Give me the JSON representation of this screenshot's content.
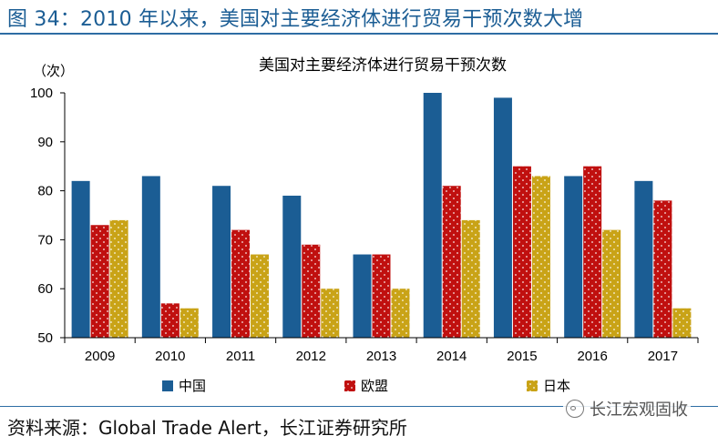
{
  "figure_title": "图 34：2010 年以来，美国对主要经济体进行贸易干预次数大增",
  "source": "资料来源：Global Trade Alert，长江证券研究所",
  "watermark": "长江宏观固收",
  "watermark_icon": "wechat-icon",
  "colors": {
    "china": "#1b5d94",
    "eu": "#c0100f",
    "japan": "#c9a317",
    "axis": "#000000",
    "brand": "#1b5d94"
  },
  "chart_data": {
    "type": "bar",
    "title": "美国对主要经济体进行贸易干预次数",
    "ylabel": "（次）",
    "xlabel": "",
    "ylim": [
      50,
      100
    ],
    "yticks": [
      50,
      60,
      70,
      80,
      90,
      100
    ],
    "grid": false,
    "legend_position": "bottom",
    "categories": [
      "2009",
      "2010",
      "2011",
      "2012",
      "2013",
      "2014",
      "2015",
      "2016",
      "2017"
    ],
    "series": [
      {
        "name": "中国",
        "color": "#1b5d94",
        "values": [
          82,
          83,
          81,
          79,
          67,
          100,
          99,
          83,
          82
        ]
      },
      {
        "name": "欧盟",
        "color": "#c0100f",
        "values": [
          73,
          57,
          72,
          69,
          67,
          81,
          85,
          85,
          78
        ]
      },
      {
        "name": "日本",
        "color": "#c9a317",
        "values": [
          74,
          56,
          67,
          60,
          60,
          74,
          83,
          72,
          56
        ]
      }
    ]
  }
}
